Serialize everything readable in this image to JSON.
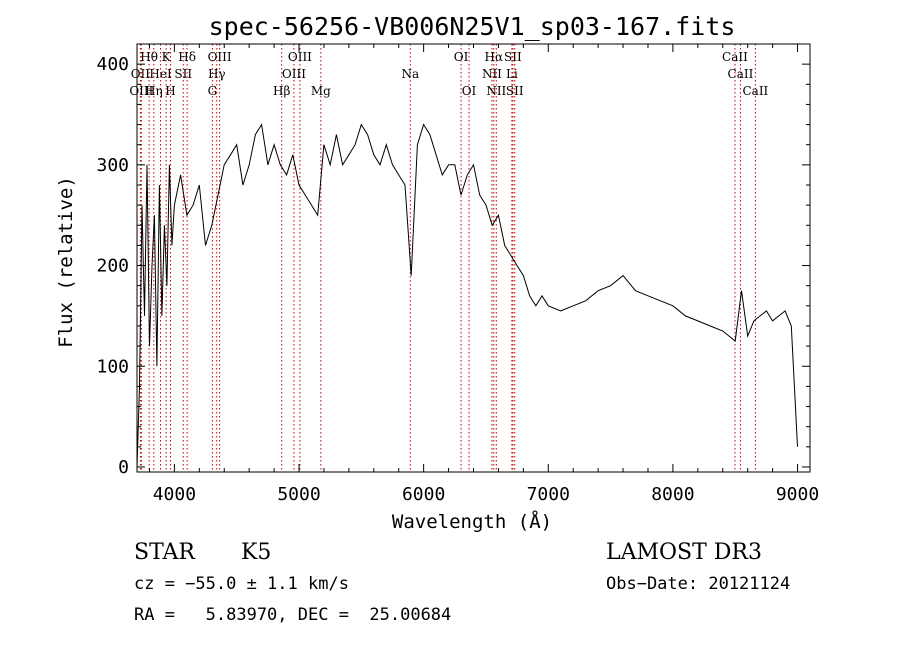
{
  "chart_data": {
    "type": "line",
    "title": "spec-56256-VB006N25V1_sp03-167.fits",
    "xlabel": "Wavelength (Å)",
    "ylabel": "Flux (relative)",
    "xlim": [
      3700,
      9100
    ],
    "ylim": [
      -5,
      420
    ],
    "xticks": [
      4000,
      5000,
      6000,
      7000,
      8000,
      9000
    ],
    "yticks": [
      0,
      100,
      200,
      300,
      400
    ],
    "grid": false,
    "line_color": "#000000",
    "marker_color": "#cc0000",
    "series": [
      {
        "name": "flux",
        "x": [
          3700,
          3720,
          3740,
          3760,
          3780,
          3800,
          3820,
          3840,
          3860,
          3880,
          3900,
          3920,
          3940,
          3960,
          3980,
          4000,
          4050,
          4100,
          4150,
          4200,
          4250,
          4300,
          4350,
          4400,
          4450,
          4500,
          4550,
          4600,
          4650,
          4700,
          4750,
          4800,
          4850,
          4900,
          4950,
          5000,
          5050,
          5100,
          5150,
          5200,
          5250,
          5300,
          5350,
          5400,
          5450,
          5500,
          5550,
          5600,
          5650,
          5700,
          5750,
          5800,
          5850,
          5900,
          5950,
          6000,
          6050,
          6100,
          6150,
          6200,
          6250,
          6300,
          6350,
          6400,
          6450,
          6500,
          6550,
          6600,
          6650,
          6700,
          6750,
          6800,
          6850,
          6900,
          6950,
          7000,
          7100,
          7200,
          7300,
          7400,
          7500,
          7600,
          7700,
          7800,
          7900,
          8000,
          8100,
          8200,
          8300,
          8400,
          8450,
          8500,
          8550,
          8600,
          8650,
          8700,
          8750,
          8800,
          8850,
          8900,
          8950,
          9000
        ],
        "y": [
          0,
          80,
          260,
          150,
          300,
          120,
          200,
          250,
          100,
          280,
          150,
          240,
          180,
          300,
          220,
          260,
          290,
          250,
          260,
          280,
          220,
          240,
          270,
          300,
          310,
          320,
          280,
          300,
          330,
          340,
          300,
          320,
          300,
          290,
          310,
          280,
          270,
          260,
          250,
          320,
          300,
          330,
          300,
          310,
          320,
          340,
          330,
          310,
          300,
          320,
          300,
          290,
          280,
          190,
          320,
          340,
          330,
          310,
          290,
          300,
          300,
          270,
          290,
          300,
          270,
          260,
          240,
          250,
          220,
          210,
          200,
          190,
          170,
          160,
          170,
          160,
          155,
          160,
          165,
          175,
          180,
          190,
          175,
          170,
          165,
          160,
          150,
          145,
          140,
          135,
          130,
          125,
          175,
          130,
          145,
          150,
          155,
          145,
          150,
          155,
          140,
          20
        ]
      }
    ],
    "lines": [
      {
        "wl": 3727,
        "label": "OII",
        "row": 1
      },
      {
        "wl": 3735,
        "label": "OIII",
        "row": 2
      },
      {
        "wl": 3797,
        "label": "Hθ",
        "row": 0
      },
      {
        "wl": 3835,
        "label": "Hη",
        "row": 2
      },
      {
        "wl": 3889,
        "label": "HeI",
        "row": 1
      },
      {
        "wl": 3934,
        "label": "K",
        "row": 0
      },
      {
        "wl": 3969,
        "label": "H",
        "row": 2
      },
      {
        "wl": 4071,
        "label": "SII",
        "row": 1
      },
      {
        "wl": 4102,
        "label": "Hδ",
        "row": 0
      },
      {
        "wl": 4305,
        "label": "G",
        "row": 2
      },
      {
        "wl": 4340,
        "label": "Hγ",
        "row": 1
      },
      {
        "wl": 4363,
        "label": "OIII",
        "row": 0
      },
      {
        "wl": 4861,
        "label": "Hβ",
        "row": 2
      },
      {
        "wl": 4959,
        "label": "OIII",
        "row": 1
      },
      {
        "wl": 5007,
        "label": "OIII",
        "row": 0
      },
      {
        "wl": 5175,
        "label": "Mg",
        "row": 2
      },
      {
        "wl": 5893,
        "label": "Na",
        "row": 1
      },
      {
        "wl": 6300,
        "label": "OI",
        "row": 0
      },
      {
        "wl": 6364,
        "label": "OI",
        "row": 2
      },
      {
        "wl": 6548,
        "label": "NII",
        "row": 1
      },
      {
        "wl": 6563,
        "label": "Hα",
        "row": 0
      },
      {
        "wl": 6583,
        "label": "NII",
        "row": 2
      },
      {
        "wl": 6708,
        "label": "Li",
        "row": 1
      },
      {
        "wl": 6716,
        "label": "SII",
        "row": 0
      },
      {
        "wl": 6731,
        "label": "SII",
        "row": 2
      },
      {
        "wl": 8498,
        "label": "CaII",
        "row": 0
      },
      {
        "wl": 8542,
        "label": "CaII",
        "row": 1
      },
      {
        "wl": 8662,
        "label": "CaII",
        "row": 2
      }
    ]
  },
  "info": {
    "class": "STAR",
    "subclass": "K5",
    "survey": "LAMOST DR3",
    "cz": "cz = −55.0 ± 1.1 km/s",
    "obs_date": "Obs−Date: 20121124",
    "coords": "RA =   5.83970, DEC =  25.00684"
  }
}
